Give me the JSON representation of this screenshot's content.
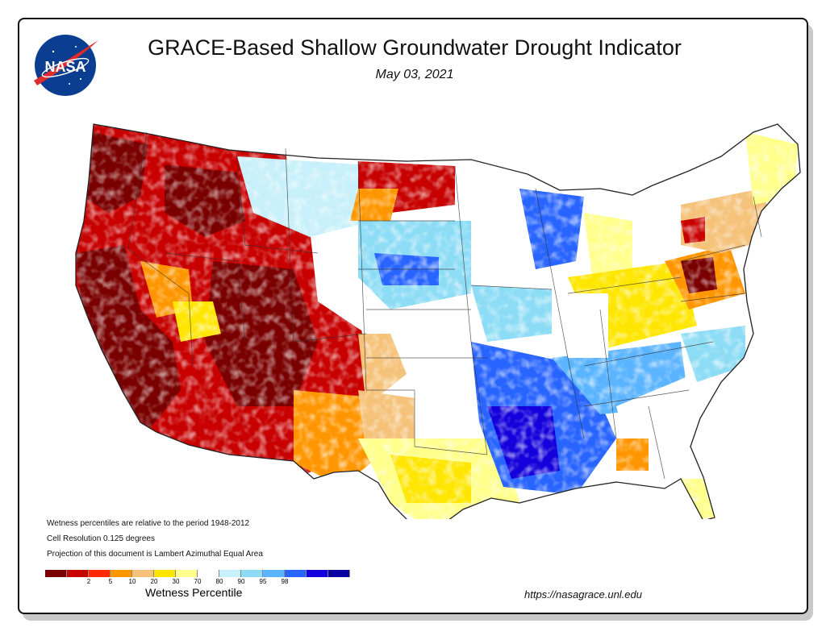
{
  "title": "GRACE-Based Shallow Groundwater Drought Indicator",
  "date": "May 03, 2021",
  "logo": {
    "text": "NASA",
    "colors": {
      "disc": "#0b3d91",
      "swoosh": "#dd2c2c"
    }
  },
  "notes": [
    "Wetness percentiles are relative to the period 1948-2012",
    "Cell Resolution 0.125 degrees",
    "Projection of this document is Lambert Azimuthal Equal Area"
  ],
  "legend": {
    "title": "Wetness Percentile",
    "colors": [
      "#7a0000",
      "#c80000",
      "#ff2a00",
      "#ff9600",
      "#f5c27a",
      "#ffe600",
      "#ffff8c",
      "#ffffff",
      "#c8f0fa",
      "#8cdcf5",
      "#5ab4ff",
      "#2864ff",
      "#1400dc",
      "#0a00a0"
    ],
    "ticks": [
      "2",
      "5",
      "10",
      "20",
      "30",
      "70",
      "80",
      "90",
      "95",
      "98"
    ]
  },
  "url": "https://nasagrace.unl.edu",
  "map": {
    "region": "Contiguous United States",
    "regions": [
      {
        "name": "pacific-northwest",
        "level": "2"
      },
      {
        "name": "california",
        "level": "2"
      },
      {
        "name": "great-basin",
        "level": "5"
      },
      {
        "name": "four-corners",
        "level": "2"
      },
      {
        "name": "southern-rockies",
        "level": "5"
      },
      {
        "name": "northern-rockies",
        "level": "5"
      },
      {
        "name": "dakotas-north",
        "level": "5"
      },
      {
        "name": "northern-plains",
        "level": "80"
      },
      {
        "name": "central-plains",
        "level": "70"
      },
      {
        "name": "southern-plains-west",
        "level": "20"
      },
      {
        "name": "texas",
        "level": "30"
      },
      {
        "name": "upper-midwest",
        "level": "90"
      },
      {
        "name": "lower-mississippi",
        "level": "98"
      },
      {
        "name": "tennessee-valley",
        "level": "95"
      },
      {
        "name": "ohio-valley",
        "level": "30"
      },
      {
        "name": "pennsylvania",
        "level": "5"
      },
      {
        "name": "northeast",
        "level": "20"
      },
      {
        "name": "southeast",
        "level": "80"
      },
      {
        "name": "florida",
        "level": "30"
      }
    ]
  }
}
